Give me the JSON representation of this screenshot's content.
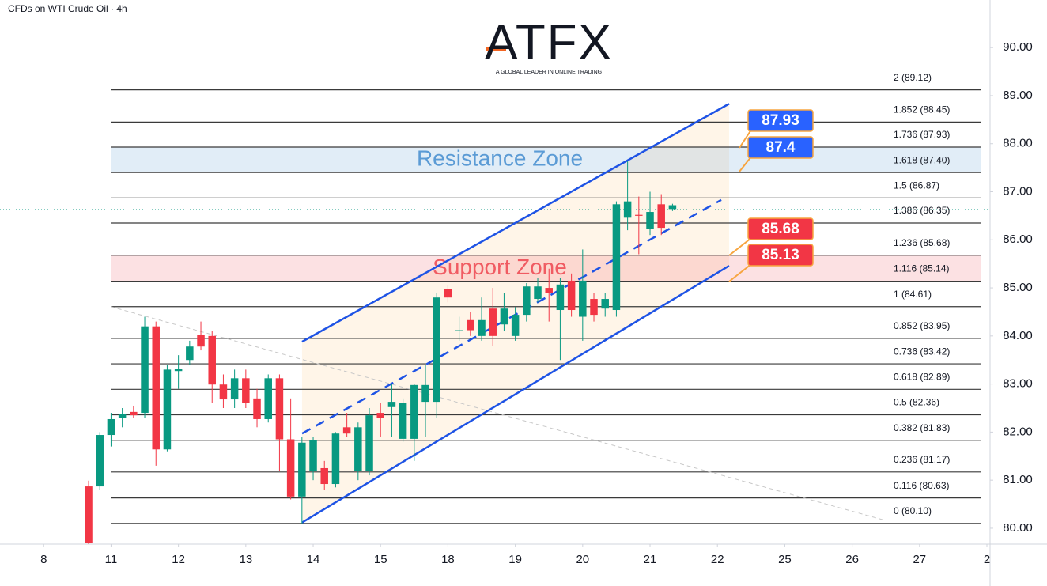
{
  "chart_data": {
    "type": "candlestick",
    "title": "CFDs on WTI Crude Oil · 4h",
    "brand": "ATFX",
    "brand_tagline": "A GLOBAL LEADER IN ONLINE TRADING",
    "up_color": "#089981",
    "down_color": "#f23645",
    "x": [
      0,
      1,
      2,
      3,
      4,
      5,
      6,
      7,
      8,
      9,
      10,
      11,
      12,
      13,
      14,
      15,
      16,
      17,
      18,
      19,
      20,
      21,
      22,
      23,
      24,
      25,
      26,
      27,
      28,
      29,
      30,
      31,
      32,
      33,
      34,
      35,
      36,
      37,
      38,
      39,
      40,
      41,
      42,
      43,
      44,
      45,
      46,
      47,
      48,
      49,
      50,
      51,
      52
    ],
    "open": [
      80.87,
      80.87,
      81.94,
      82.3,
      82.42,
      82.4,
      84.2,
      81.64,
      83.27,
      83.5,
      84.03,
      84.0,
      82.99,
      82.68,
      83.12,
      82.7,
      82.27,
      83.12,
      81.85,
      80.66,
      81.2,
      81.25,
      80.92,
      82.1,
      81.2,
      81.2,
      82.4,
      82.52,
      81.86,
      81.86,
      82.63,
      82.63,
      84.97,
      84.1,
      84.33,
      84.0,
      84.57,
      84.24,
      84.0,
      84.44,
      84.77,
      85.0,
      84.54,
      85.15,
      84.4,
      84.77,
      84.57,
      84.54,
      86.46,
      86.52,
      86.22,
      86.74,
      86.64
    ],
    "high": [
      80.99,
      82.0,
      82.4,
      82.5,
      82.55,
      84.4,
      84.3,
      83.4,
      83.6,
      83.9,
      84.3,
      84.1,
      83.2,
      83.3,
      83.3,
      82.9,
      83.2,
      83.2,
      82.7,
      81.9,
      81.9,
      81.4,
      82.0,
      82.4,
      82.2,
      82.5,
      82.6,
      83.0,
      82.7,
      83.0,
      83.4,
      84.9,
      85.05,
      84.4,
      84.5,
      84.8,
      85.0,
      84.9,
      84.6,
      85.1,
      85.2,
      85.4,
      85.2,
      85.3,
      85.8,
      84.9,
      84.9,
      86.8,
      87.65,
      86.9,
      87.0,
      86.95,
      86.75
    ],
    "low": [
      79.67,
      80.8,
      81.7,
      82.1,
      82.3,
      82.3,
      81.3,
      81.6,
      82.9,
      83.4,
      83.7,
      82.6,
      82.5,
      82.5,
      82.5,
      82.1,
      82.2,
      81.2,
      80.6,
      80.1,
      81.0,
      80.8,
      80.85,
      81.9,
      81.0,
      81.1,
      81.9,
      81.9,
      81.8,
      81.4,
      81.9,
      82.3,
      84.7,
      83.9,
      84.0,
      83.9,
      83.8,
      84.1,
      83.9,
      84.3,
      84.7,
      84.3,
      83.5,
      84.4,
      83.9,
      84.3,
      84.4,
      84.4,
      86.2,
      85.7,
      86.1,
      86.1,
      86.6
    ],
    "close": [
      79.7,
      81.94,
      82.27,
      82.38,
      82.35,
      84.2,
      81.64,
      83.3,
      83.32,
      83.78,
      83.78,
      82.99,
      82.68,
      83.12,
      82.6,
      82.27,
      83.12,
      81.85,
      80.66,
      81.78,
      81.83,
      80.92,
      81.97,
      81.97,
      82.1,
      82.35,
      82.3,
      82.63,
      82.6,
      82.98,
      82.98,
      84.8,
      84.8,
      84.12,
      84.12,
      84.33,
      84.0,
      84.57,
      84.44,
      85.03,
      85.03,
      84.9,
      85.07,
      84.54,
      85.15,
      84.44,
      84.77,
      86.74,
      86.8,
      86.5,
      86.58,
      86.25,
      86.72
    ],
    "xlim": [
      -7.89,
      80.14
    ],
    "xticks": [
      {
        "value": -4,
        "label": "8"
      },
      {
        "value": 2,
        "label": "11"
      },
      {
        "value": 8,
        "label": "12"
      },
      {
        "value": 14,
        "label": "13"
      },
      {
        "value": 20,
        "label": "14"
      },
      {
        "value": 26,
        "label": "15"
      },
      {
        "value": 32,
        "label": "18"
      },
      {
        "value": 38,
        "label": "19"
      },
      {
        "value": 44,
        "label": "20"
      },
      {
        "value": 50,
        "label": "21"
      },
      {
        "value": 56,
        "label": "22"
      },
      {
        "value": 62,
        "label": "25"
      },
      {
        "value": 68,
        "label": "26"
      },
      {
        "value": 74,
        "label": "27"
      },
      {
        "value": 80,
        "label": "2"
      }
    ],
    "ylim": [
      79.67,
      90.99
    ],
    "yticks": [
      {
        "value": 80,
        "label": "80.00"
      },
      {
        "value": 81,
        "label": "81.00"
      },
      {
        "value": 82,
        "label": "82.00"
      },
      {
        "value": 83,
        "label": "83.00"
      },
      {
        "value": 84,
        "label": "84.00"
      },
      {
        "value": 85,
        "label": "85.00"
      },
      {
        "value": 86,
        "label": "86.00"
      },
      {
        "value": 87,
        "label": "87.00"
      },
      {
        "value": 88,
        "label": "88.00"
      },
      {
        "value": 89,
        "label": "89.00"
      },
      {
        "value": 90,
        "label": "90.00"
      }
    ],
    "fib_levels": [
      {
        "value": 89.12,
        "label": "2 (89.12)"
      },
      {
        "value": 88.45,
        "label": "1.852 (88.45)"
      },
      {
        "value": 87.93,
        "label": "1.736 (87.93)"
      },
      {
        "value": 87.4,
        "label": "1.618 (87.40)"
      },
      {
        "value": 86.87,
        "label": "1.5 (86.87)"
      },
      {
        "value": 86.35,
        "label": "1.386 (86.35)"
      },
      {
        "value": 85.68,
        "label": "1.236 (85.68)"
      },
      {
        "value": 85.14,
        "label": "1.116 (85.14)"
      },
      {
        "value": 84.61,
        "label": "1 (84.61)"
      },
      {
        "value": 83.95,
        "label": "0.852 (83.95)"
      },
      {
        "value": 83.42,
        "label": "0.736 (83.42)"
      },
      {
        "value": 82.89,
        "label": "0.618 (82.89)"
      },
      {
        "value": 82.36,
        "label": "0.5 (82.36)"
      },
      {
        "value": 81.83,
        "label": "0.382 (81.83)"
      },
      {
        "value": 81.17,
        "label": "0.236 (81.17)"
      },
      {
        "value": 80.63,
        "label": "0.116 (80.63)"
      },
      {
        "value": 80.1,
        "label": "0 (80.10)"
      }
    ],
    "zones": [
      {
        "label": "Resistance Zone",
        "from": 87.4,
        "to": 87.93,
        "color": "#5b9bd5"
      },
      {
        "label": "Support Zone",
        "from": 85.13,
        "to": 85.68,
        "color": "#f05b62"
      }
    ],
    "price_tags": [
      {
        "value": 87.93,
        "color": "#2962ff"
      },
      {
        "value": 87.4,
        "color": "#2962ff"
      },
      {
        "value": 85.68,
        "color": "#f23645"
      },
      {
        "value": 85.13,
        "color": "#f23645"
      }
    ],
    "current_price": 86.63,
    "channel": {
      "upper": {
        "x": [
          19.01,
          57.04
        ],
        "y": [
          83.88,
          88.83
        ]
      },
      "lower": {
        "x": [
          19.01,
          57.04
        ],
        "y": [
          80.12,
          85.46
        ]
      },
      "middle": {
        "x": [
          19.01,
          56.34
        ],
        "y": [
          81.97,
          86.83
        ]
      }
    },
    "trendline": {
      "x": [
        1.97,
        71
      ],
      "y": [
        84.61,
        80.16
      ]
    }
  }
}
